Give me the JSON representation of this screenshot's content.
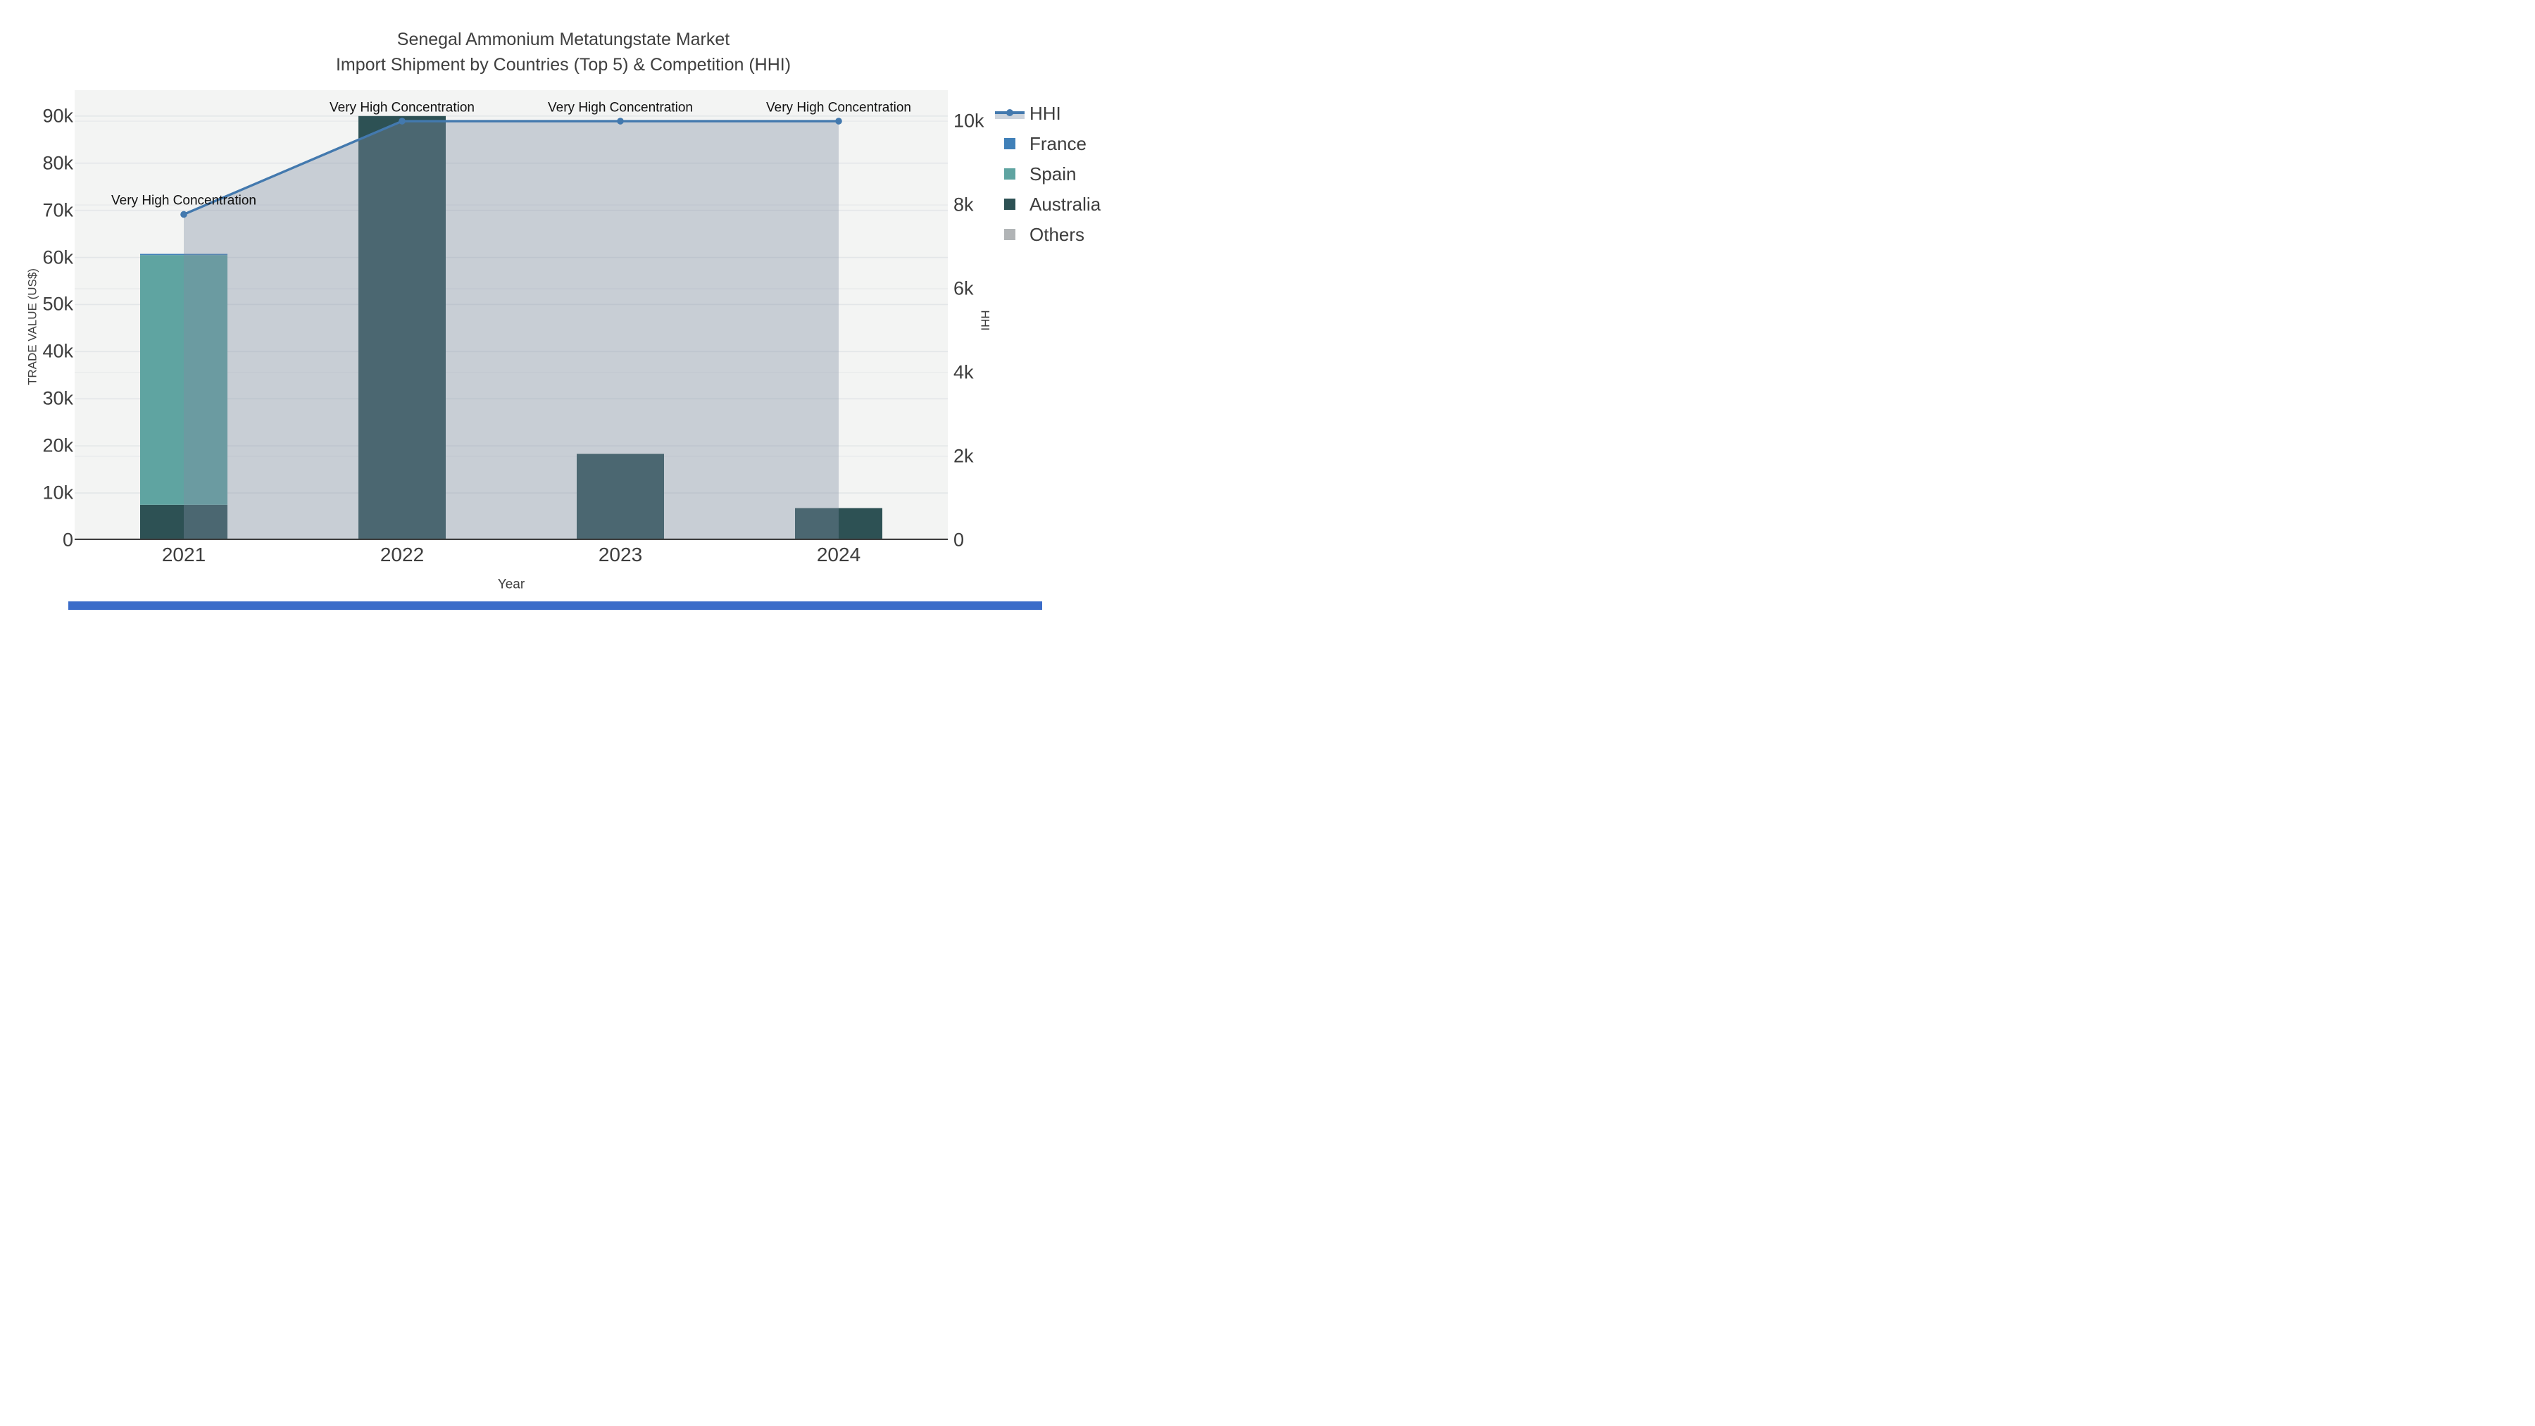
{
  "title": {
    "line1": "Senegal Ammonium Metatungstate Market",
    "line2": "Import Shipment by Countries (Top 5) & Competition (HHI)"
  },
  "axes": {
    "x": {
      "title": "Year",
      "labels": [
        "2021",
        "2022",
        "2023",
        "2024"
      ]
    },
    "y_left": {
      "title": "TRADE VALUE (US$)",
      "ticks": [
        {
          "label": "0",
          "value": 0
        },
        {
          "label": "10k",
          "value": 10000
        },
        {
          "label": "20k",
          "value": 20000
        },
        {
          "label": "30k",
          "value": 30000
        },
        {
          "label": "40k",
          "value": 40000
        },
        {
          "label": "50k",
          "value": 50000
        },
        {
          "label": "60k",
          "value": 60000
        },
        {
          "label": "70k",
          "value": 70000
        },
        {
          "label": "80k",
          "value": 80000
        },
        {
          "label": "90k",
          "value": 90000
        }
      ]
    },
    "y_right": {
      "title": "HHI",
      "ticks": [
        {
          "label": "0",
          "value": 0
        },
        {
          "label": "2k",
          "value": 2000
        },
        {
          "label": "4k",
          "value": 4000
        },
        {
          "label": "6k",
          "value": 6000
        },
        {
          "label": "8k",
          "value": 8000
        },
        {
          "label": "10k",
          "value": 10000
        }
      ]
    }
  },
  "legend": {
    "items": [
      {
        "label": "HHI",
        "swatch": "line"
      },
      {
        "label": "France",
        "swatch": "square",
        "color_key": "france"
      },
      {
        "label": "Spain",
        "swatch": "square",
        "color_key": "spain"
      },
      {
        "label": "Australia",
        "swatch": "square",
        "color_key": "australia"
      },
      {
        "label": "Others",
        "swatch": "square",
        "color_key": "others"
      }
    ]
  },
  "annotation_text": "Very High Concentration",
  "colors": {
    "france": "#4080b8",
    "spain": "#5fa4a1",
    "australia": "#2d5154",
    "others": "#b1b4b6",
    "hhi_line": "#4379ae",
    "hhi_area_fill": "rgba(128,140,164,0.37)",
    "hhi_legend_fill": "#ccd3dc",
    "plot_bg": "#f3f4f3",
    "grid_left": "#e3e6e8",
    "grid_right": "#e9ebec",
    "axis_line": "#3f3f3f",
    "bottom_bar": "#3b6cc9"
  },
  "chart_data": {
    "type": "bar",
    "subtype": "stacked-bars-with-line-overlay",
    "categories": [
      "2021",
      "2022",
      "2023",
      "2024"
    ],
    "series": [
      {
        "name": "Australia",
        "color_key": "australia",
        "values": [
          7500,
          90000,
          18300,
          6800
        ]
      },
      {
        "name": "Spain",
        "color_key": "spain",
        "values": [
          53000,
          0,
          0,
          0
        ]
      },
      {
        "name": "France",
        "color_key": "france",
        "values": [
          250,
          0,
          0,
          0
        ]
      },
      {
        "name": "Others",
        "color_key": "others",
        "values": [
          0,
          0,
          0,
          0
        ]
      }
    ],
    "stack_order": [
      "Australia",
      "Spain",
      "France",
      "Others"
    ],
    "line_series": {
      "name": "HHI",
      "axis": "right",
      "values": [
        7774,
        10000,
        10000,
        10000
      ],
      "annotations": [
        "Very High Concentration",
        "Very High Concentration",
        "Very High Concentration",
        "Very High Concentration"
      ]
    },
    "xlabel": "Year",
    "ylabel_left": "TRADE VALUE (US$)",
    "ylabel_right": "HHI",
    "y_left_range": [
      0,
      95500
    ],
    "y_right_range": [
      0,
      10740
    ],
    "bar_width_fraction": 0.4,
    "grid": true,
    "legend_position": "right"
  }
}
